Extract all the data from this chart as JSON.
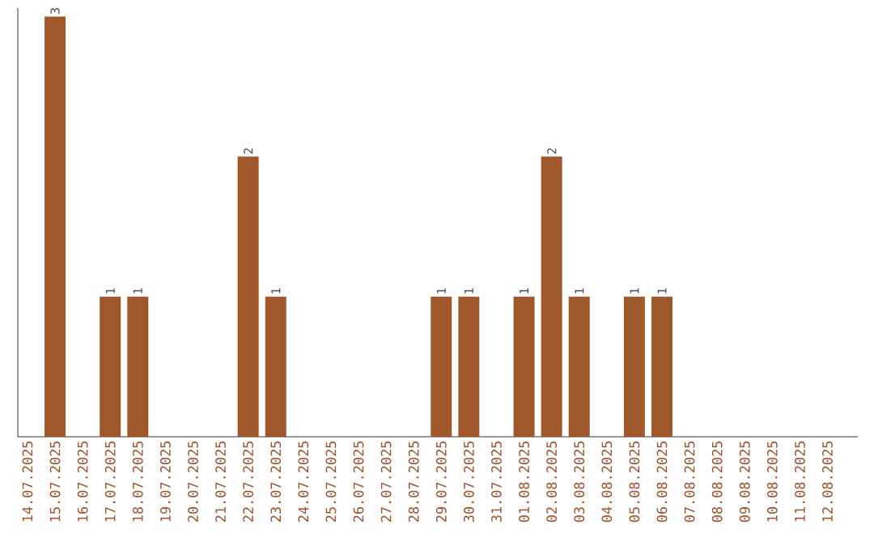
{
  "chart_data": {
    "type": "bar",
    "categories": [
      "14.07.2025",
      "15.07.2025",
      "16.07.2025",
      "17.07.2025",
      "18.07.2025",
      "19.07.2025",
      "20.07.2025",
      "21.07.2025",
      "22.07.2025",
      "23.07.2025",
      "24.07.2025",
      "25.07.2025",
      "26.07.2025",
      "27.07.2025",
      "28.07.2025",
      "29.07.2025",
      "30.07.2025",
      "31.07.2025",
      "01.08.2025",
      "02.08.2025",
      "03.08.2025",
      "04.08.2025",
      "05.08.2025",
      "06.08.2025",
      "07.08.2025",
      "08.08.2025",
      "09.08.2025",
      "10.08.2025",
      "11.08.2025",
      "12.08.2025"
    ],
    "values": [
      0,
      3,
      0,
      1,
      1,
      0,
      0,
      0,
      2,
      1,
      0,
      0,
      0,
      0,
      0,
      1,
      1,
      0,
      1,
      2,
      1,
      0,
      1,
      1,
      0,
      0,
      0,
      0,
      0,
      0
    ],
    "value_labels": [
      null,
      "3",
      null,
      "1",
      "1",
      null,
      null,
      null,
      "2",
      "1",
      null,
      null,
      null,
      null,
      null,
      "1",
      "1",
      null,
      "1",
      "2",
      "1",
      null,
      "1",
      "1",
      null,
      null,
      null,
      null,
      null,
      null
    ],
    "color": "#a0572a",
    "tick_labels": "x",
    "grid": false
  }
}
